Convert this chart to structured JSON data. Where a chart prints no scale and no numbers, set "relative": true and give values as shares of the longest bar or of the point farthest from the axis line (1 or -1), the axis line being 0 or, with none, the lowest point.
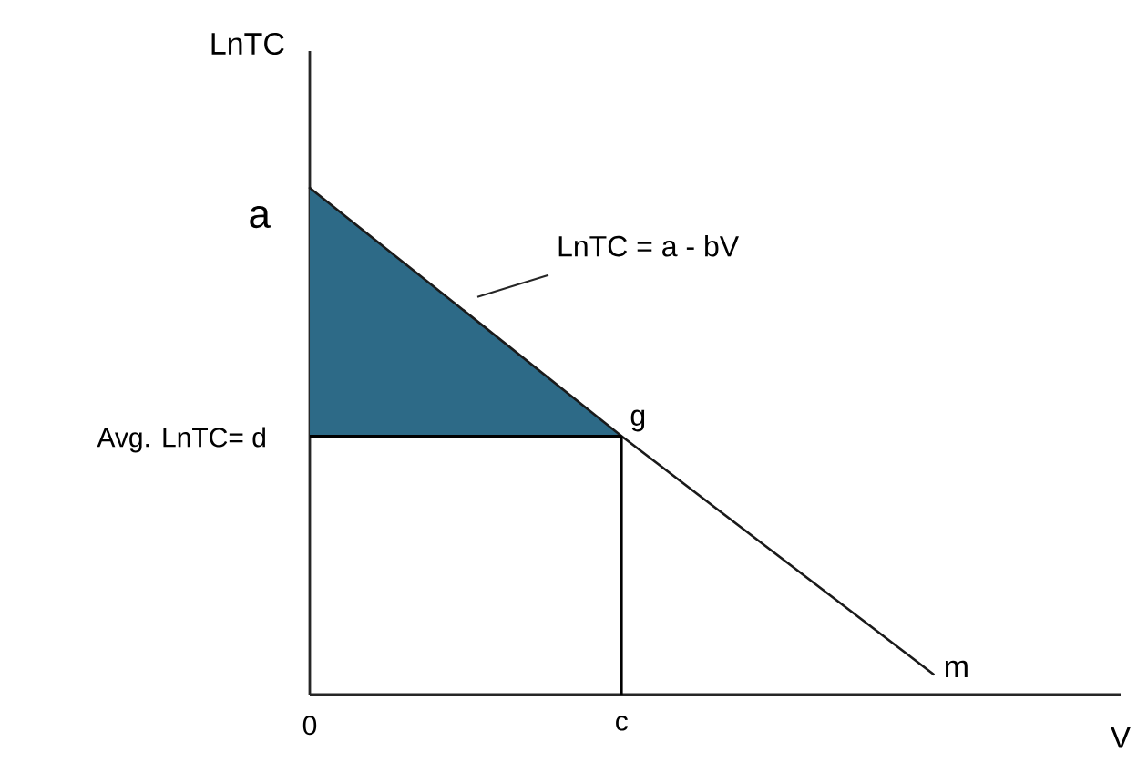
{
  "chart_data": {
    "type": "line",
    "relative": true,
    "xlabel": "V",
    "ylabel": "LnTC",
    "categories": [
      "0",
      "c",
      null
    ],
    "series": [
      {
        "type": "area",
        "color": "#2d6a87",
        "values": [
          1,
          0.51,
          null
        ]
      },
      {
        "color": "#1a1a1a",
        "values": [
          1,
          0.51,
          0.04
        ]
      }
    ],
    "ref_lines": [
      {
        "axis": "y",
        "value": 0.51,
        "label": "Avg. LnTC= d"
      },
      {
        "axis": "x",
        "value": "c"
      }
    ],
    "annotations": [
      {
        "text": "a",
        "x": "0",
        "y": 1
      },
      {
        "text": "g",
        "x": "c",
        "y": 0.51
      },
      "LnTC = a - bV",
      "m"
    ]
  }
}
